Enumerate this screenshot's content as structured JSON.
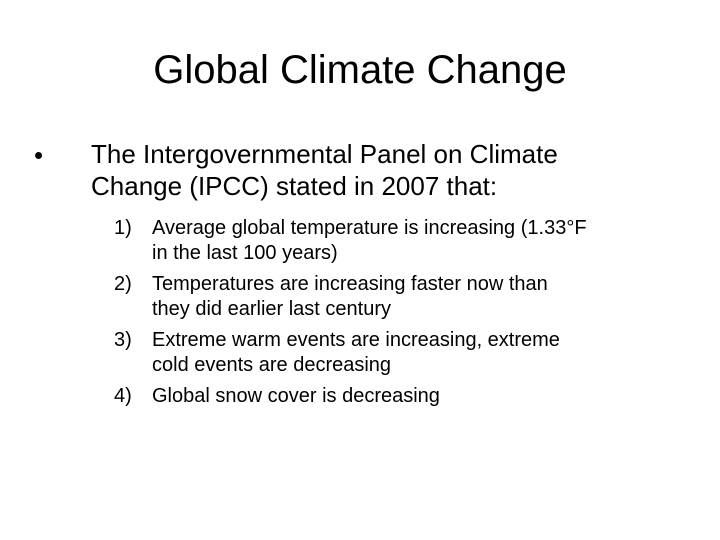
{
  "slide": {
    "title": "Global Climate Change",
    "bullet": {
      "marker": "•",
      "lines": [
        "The Intergovernmental Panel on Climate",
        "Change (IPCC) stated in 2007 that:"
      ]
    },
    "subitems": [
      {
        "num": "1)",
        "lines": [
          "Average global temperature is increasing (1.33°F",
          "in the last 100 years)"
        ]
      },
      {
        "num": "2)",
        "lines": [
          "Temperatures are increasing faster now than",
          "they did earlier last century"
        ]
      },
      {
        "num": "3)",
        "lines": [
          "Extreme warm events are increasing, extreme",
          "cold events are decreasing"
        ]
      },
      {
        "num": "4)",
        "lines": [
          "Global snow cover is decreasing"
        ]
      }
    ]
  }
}
